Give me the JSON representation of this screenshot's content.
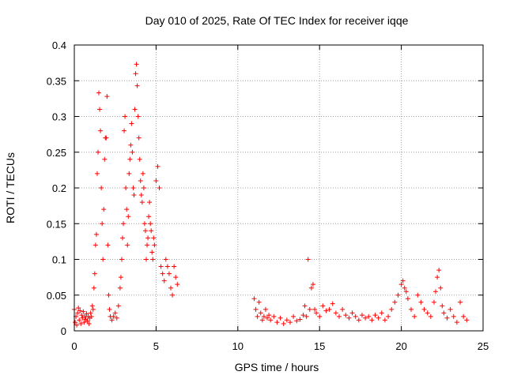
{
  "chart_data": {
    "type": "scatter",
    "title": "Day 010 of 2025, Rate Of TEC Index for receiver iqqe",
    "xlabel": "GPS time / hours",
    "ylabel": "ROTI / TECUs",
    "xlim": [
      0,
      25
    ],
    "ylim": [
      0,
      0.4
    ],
    "xticks": [
      0,
      5,
      10,
      15,
      20,
      25
    ],
    "xtick_labels": [
      "0",
      "5",
      "10",
      "15",
      "20",
      "25"
    ],
    "yticks": [
      0,
      0.05,
      0.1,
      0.15,
      0.2,
      0.25,
      0.3,
      0.35,
      0.4
    ],
    "ytick_labels": [
      "0",
      "0.05",
      "0.1",
      "0.15",
      "0.2",
      "0.25",
      "0.3",
      "0.35",
      "0.4"
    ],
    "grid": true,
    "marker": "plus",
    "color": "#ff0000",
    "series": [
      {
        "points": [
          [
            0.0,
            0.03
          ],
          [
            0.05,
            0.012
          ],
          [
            0.1,
            0.02
          ],
          [
            0.15,
            0.008
          ],
          [
            0.2,
            0.025
          ],
          [
            0.25,
            0.032
          ],
          [
            0.3,
            0.015
          ],
          [
            0.35,
            0.028
          ],
          [
            0.4,
            0.01
          ],
          [
            0.45,
            0.022
          ],
          [
            0.5,
            0.018
          ],
          [
            0.55,
            0.027
          ],
          [
            0.6,
            0.012
          ],
          [
            0.65,
            0.02
          ],
          [
            0.7,
            0.016
          ],
          [
            0.75,
            0.024
          ],
          [
            0.8,
            0.014
          ],
          [
            0.85,
            0.02
          ],
          [
            0.9,
            0.01
          ],
          [
            0.95,
            0.018
          ],
          [
            1.0,
            0.025
          ],
          [
            1.05,
            0.02
          ],
          [
            1.1,
            0.035
          ],
          [
            1.15,
            0.03
          ],
          [
            1.2,
            0.06
          ],
          [
            1.25,
            0.08
          ],
          [
            1.3,
            0.12
          ],
          [
            1.35,
            0.135
          ],
          [
            1.4,
            0.22
          ],
          [
            1.45,
            0.25
          ],
          [
            1.5,
            0.333
          ],
          [
            1.55,
            0.31
          ],
          [
            1.6,
            0.28
          ],
          [
            1.65,
            0.2
          ],
          [
            1.7,
            0.15
          ],
          [
            1.75,
            0.1
          ],
          [
            1.8,
            0.17
          ],
          [
            1.85,
            0.24
          ],
          [
            1.9,
            0.27
          ],
          [
            1.95,
            0.27
          ],
          [
            2.0,
            0.328
          ],
          [
            2.05,
            0.12
          ],
          [
            2.1,
            0.05
          ],
          [
            2.15,
            0.03
          ],
          [
            2.2,
            0.02
          ],
          [
            2.3,
            0.015
          ],
          [
            2.4,
            0.02
          ],
          [
            2.5,
            0.025
          ],
          [
            2.6,
            0.018
          ],
          [
            2.7,
            0.035
          ],
          [
            2.8,
            0.06
          ],
          [
            2.85,
            0.075
          ],
          [
            2.9,
            0.1
          ],
          [
            2.95,
            0.13
          ],
          [
            3.0,
            0.15
          ],
          [
            3.05,
            0.28
          ],
          [
            3.1,
            0.3
          ],
          [
            3.15,
            0.2
          ],
          [
            3.2,
            0.17
          ],
          [
            3.25,
            0.12
          ],
          [
            3.3,
            0.16
          ],
          [
            3.35,
            0.22
          ],
          [
            3.4,
            0.24
          ],
          [
            3.45,
            0.26
          ],
          [
            3.5,
            0.29
          ],
          [
            3.55,
            0.25
          ],
          [
            3.6,
            0.2
          ],
          [
            3.65,
            0.19
          ],
          [
            3.7,
            0.31
          ],
          [
            3.75,
            0.36
          ],
          [
            3.8,
            0.373
          ],
          [
            3.85,
            0.343
          ],
          [
            3.9,
            0.3
          ],
          [
            3.95,
            0.27
          ],
          [
            4.0,
            0.24
          ],
          [
            4.05,
            0.21
          ],
          [
            4.1,
            0.19
          ],
          [
            4.15,
            0.18
          ],
          [
            4.2,
            0.22
          ],
          [
            4.25,
            0.2
          ],
          [
            4.3,
            0.15
          ],
          [
            4.35,
            0.14
          ],
          [
            4.4,
            0.1
          ],
          [
            4.45,
            0.12
          ],
          [
            4.5,
            0.13
          ],
          [
            4.55,
            0.16
          ],
          [
            4.6,
            0.18
          ],
          [
            4.65,
            0.15
          ],
          [
            4.7,
            0.14
          ],
          [
            4.75,
            0.11
          ],
          [
            4.8,
            0.1
          ],
          [
            4.85,
            0.13
          ],
          [
            4.9,
            0.12
          ],
          [
            5.0,
            0.21
          ],
          [
            5.1,
            0.23
          ],
          [
            5.2,
            0.2
          ],
          [
            5.3,
            0.09
          ],
          [
            5.4,
            0.08
          ],
          [
            5.5,
            0.07
          ],
          [
            5.6,
            0.1
          ],
          [
            5.7,
            0.09
          ],
          [
            5.8,
            0.08
          ],
          [
            5.9,
            0.06
          ],
          [
            6.0,
            0.05
          ],
          [
            6.1,
            0.09
          ],
          [
            6.2,
            0.075
          ],
          [
            6.3,
            0.065
          ],
          [
            11.0,
            0.045
          ],
          [
            11.1,
            0.03
          ],
          [
            11.2,
            0.02
          ],
          [
            11.3,
            0.04
          ],
          [
            11.4,
            0.025
          ],
          [
            11.5,
            0.015
          ],
          [
            11.6,
            0.02
          ],
          [
            11.7,
            0.03
          ],
          [
            11.8,
            0.018
          ],
          [
            11.9,
            0.022
          ],
          [
            12.0,
            0.015
          ],
          [
            12.2,
            0.02
          ],
          [
            12.4,
            0.012
          ],
          [
            12.6,
            0.018
          ],
          [
            12.8,
            0.01
          ],
          [
            13.0,
            0.015
          ],
          [
            13.2,
            0.012
          ],
          [
            13.4,
            0.02
          ],
          [
            13.6,
            0.014
          ],
          [
            13.8,
            0.016
          ],
          [
            14.0,
            0.022
          ],
          [
            14.1,
            0.035
          ],
          [
            14.2,
            0.02
          ],
          [
            14.3,
            0.1
          ],
          [
            14.4,
            0.03
          ],
          [
            14.5,
            0.06
          ],
          [
            14.6,
            0.065
          ],
          [
            14.7,
            0.03
          ],
          [
            14.8,
            0.025
          ],
          [
            15.0,
            0.02
          ],
          [
            15.2,
            0.035
          ],
          [
            15.4,
            0.028
          ],
          [
            15.6,
            0.03
          ],
          [
            15.8,
            0.038
          ],
          [
            16.0,
            0.025
          ],
          [
            16.2,
            0.02
          ],
          [
            16.4,
            0.03
          ],
          [
            16.6,
            0.022
          ],
          [
            16.8,
            0.018
          ],
          [
            17.0,
            0.025
          ],
          [
            17.2,
            0.02
          ],
          [
            17.4,
            0.015
          ],
          [
            17.6,
            0.022
          ],
          [
            17.8,
            0.018
          ],
          [
            18.0,
            0.02
          ],
          [
            18.2,
            0.015
          ],
          [
            18.4,
            0.022
          ],
          [
            18.6,
            0.018
          ],
          [
            18.8,
            0.025
          ],
          [
            19.0,
            0.015
          ],
          [
            19.2,
            0.02
          ],
          [
            19.4,
            0.03
          ],
          [
            19.6,
            0.04
          ],
          [
            19.8,
            0.05
          ],
          [
            20.0,
            0.065
          ],
          [
            20.1,
            0.07
          ],
          [
            20.2,
            0.06
          ],
          [
            20.3,
            0.055
          ],
          [
            20.4,
            0.045
          ],
          [
            20.6,
            0.03
          ],
          [
            20.8,
            0.02
          ],
          [
            21.0,
            0.05
          ],
          [
            21.2,
            0.04
          ],
          [
            21.4,
            0.03
          ],
          [
            21.6,
            0.025
          ],
          [
            21.8,
            0.02
          ],
          [
            22.0,
            0.04
          ],
          [
            22.1,
            0.055
          ],
          [
            22.2,
            0.075
          ],
          [
            22.3,
            0.085
          ],
          [
            22.4,
            0.06
          ],
          [
            22.5,
            0.035
          ],
          [
            22.6,
            0.025
          ],
          [
            22.8,
            0.018
          ],
          [
            23.0,
            0.03
          ],
          [
            23.2,
            0.02
          ],
          [
            23.4,
            0.012
          ],
          [
            23.6,
            0.04
          ],
          [
            23.8,
            0.02
          ],
          [
            24.0,
            0.015
          ]
        ]
      }
    ]
  }
}
